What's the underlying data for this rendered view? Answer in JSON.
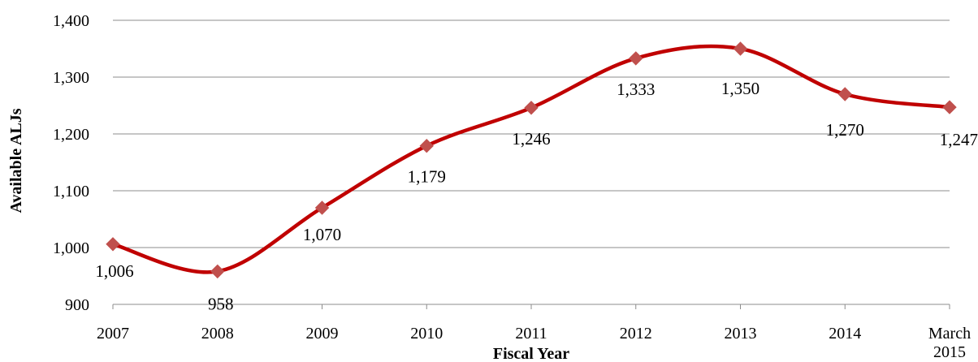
{
  "chart_data": {
    "type": "line",
    "title": "",
    "xlabel": "Fiscal Year",
    "ylabel": "Available ALJs",
    "ylim": [
      900,
      1400
    ],
    "yticks": [
      900,
      1000,
      1100,
      1200,
      1300,
      1400
    ],
    "ytick_labels": [
      "900",
      "1,000",
      "1,100",
      "1,200",
      "1,300",
      "1,400"
    ],
    "categories": [
      "2007",
      "2008",
      "2009",
      "2010",
      "2011",
      "2012",
      "2013",
      "2014",
      "March 2015"
    ],
    "category_labels": [
      [
        "2007"
      ],
      [
        "2008"
      ],
      [
        "2009"
      ],
      [
        "2010"
      ],
      [
        "2011"
      ],
      [
        "2012"
      ],
      [
        "2013"
      ],
      [
        "2014"
      ],
      [
        "March",
        "2015"
      ]
    ],
    "series": [
      {
        "values": [
          1006,
          958,
          1070,
          1179,
          1246,
          1333,
          1350,
          1270,
          1247
        ],
        "data_labels": [
          "1,006",
          "958",
          "1,070",
          "1,179",
          "1,246",
          "1,333",
          "1,350",
          "1,270",
          "1,247"
        ]
      }
    ],
    "line_color": "#C00000",
    "marker_color": "#C0504D",
    "marker": "diamond",
    "smooth": true,
    "grid": true,
    "legend": "none"
  }
}
